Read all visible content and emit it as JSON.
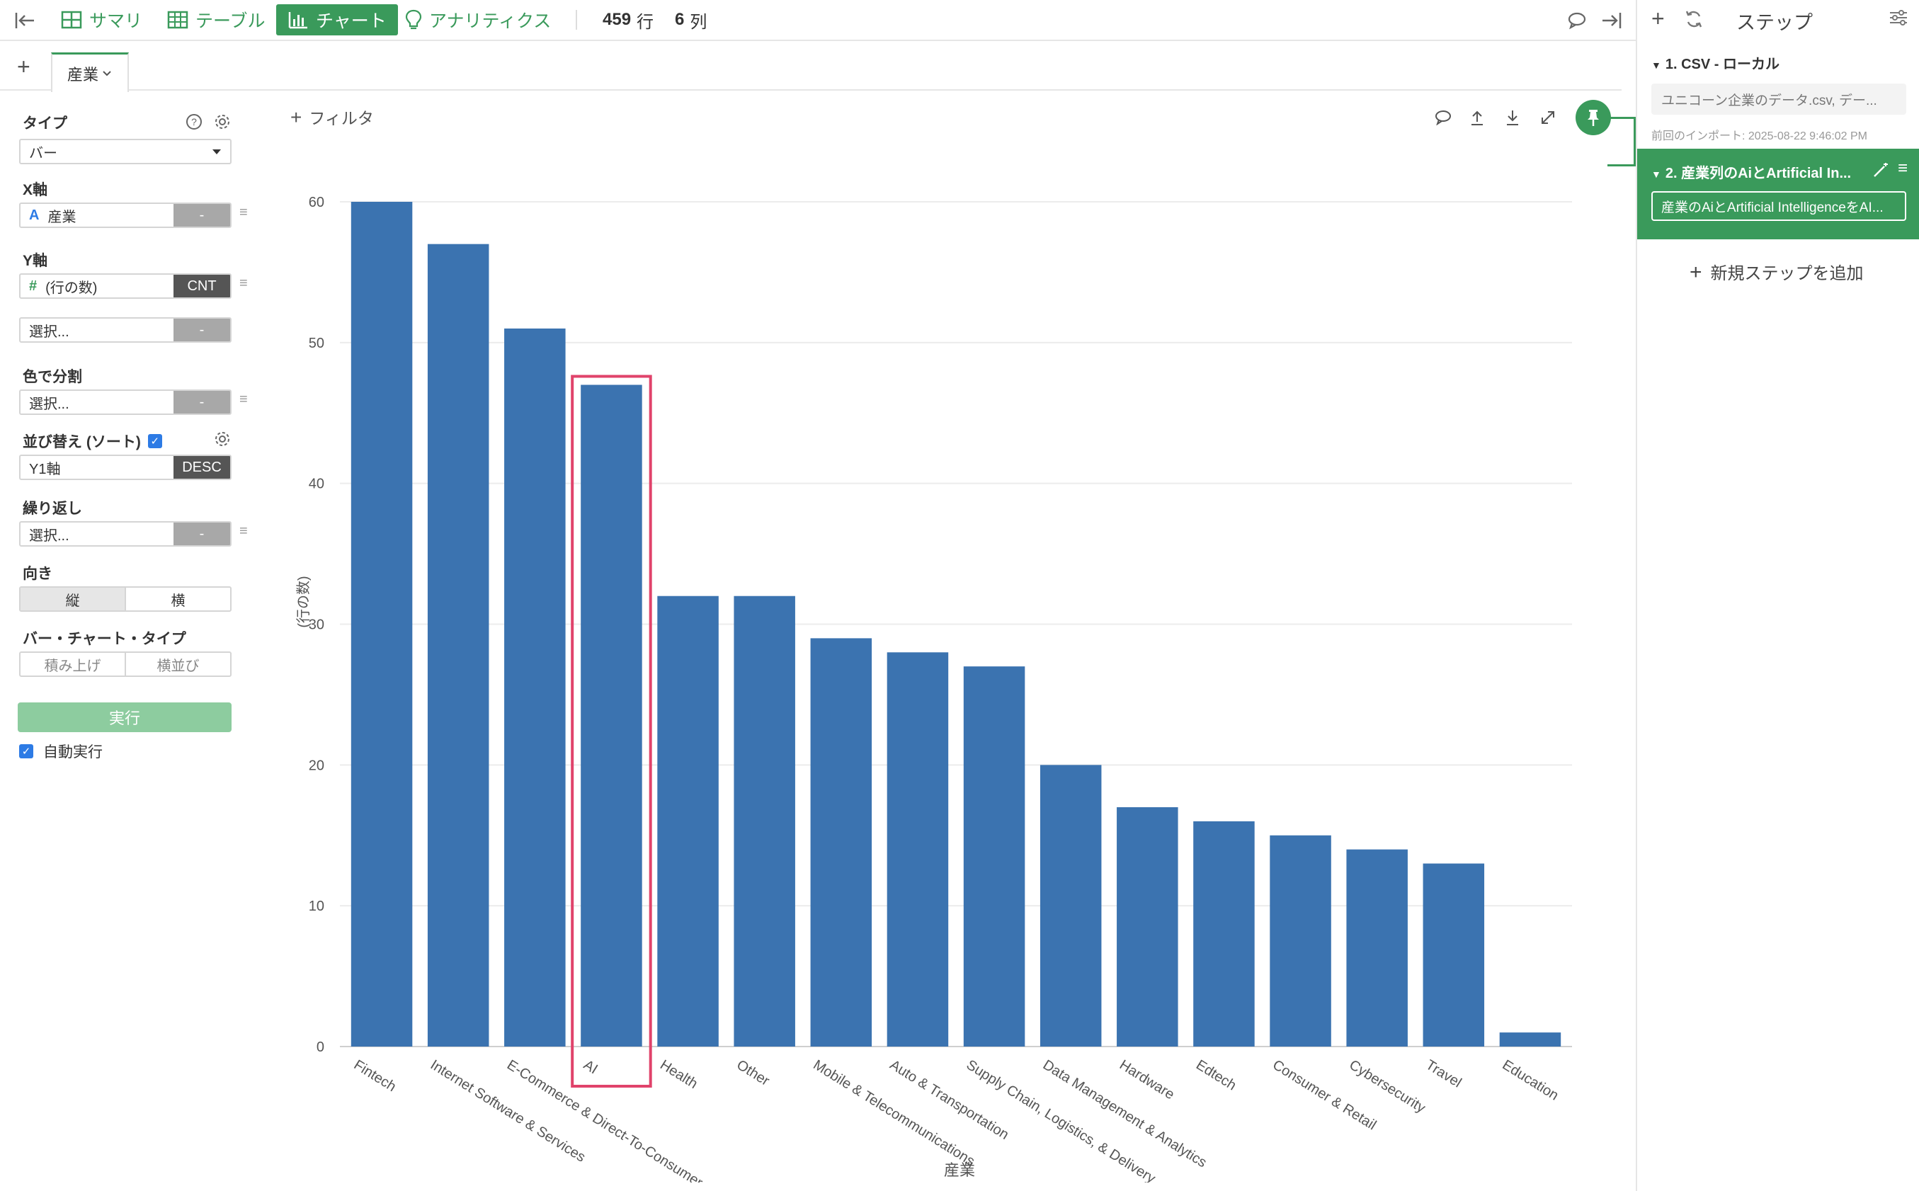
{
  "topbar": {
    "tabs": [
      {
        "label": "サマリ",
        "icon": "summary-grid-icon"
      },
      {
        "label": "テーブル",
        "icon": "table-icon"
      },
      {
        "label": "チャート",
        "icon": "bar-chart-icon",
        "active": true
      },
      {
        "label": "アナリティクス",
        "icon": "lightbulb-icon"
      }
    ],
    "rows_count": "459",
    "rows_unit": "行",
    "cols_count": "6",
    "cols_unit": "列"
  },
  "tabstrip": {
    "tab_label": "産業"
  },
  "left_panel": {
    "type_label": "タイプ",
    "type_value": "バー",
    "x_axis_label": "X軸",
    "x_axis_value": "産業",
    "x_axis_btn": "-",
    "y_axis_label": "Y軸",
    "y_axis_value": "(行の数)",
    "y_axis_agg": "CNT",
    "y2_placeholder": "選択...",
    "y2_btn": "-",
    "color_label": "色で分割",
    "color_placeholder": "選択...",
    "color_btn": "-",
    "sort_label": "並び替え (ソート)",
    "sort_value": "Y1軸",
    "sort_order": "DESC",
    "repeat_label": "繰り返し",
    "repeat_placeholder": "選択...",
    "repeat_btn": "-",
    "orientation_label": "向き",
    "orientation_options": [
      "縦",
      "横"
    ],
    "bar_type_label": "バー・チャート・タイプ",
    "bar_type_options": [
      "積み上げ",
      "横並び"
    ],
    "run_button": "実行",
    "auto_run_label": "自動実行"
  },
  "chart_toolbar": {
    "filter_label": "フィルタ"
  },
  "chart_data": {
    "type": "bar",
    "categories": [
      "Fintech",
      "Internet Software & Services",
      "E-Commerce & Direct-To-Consumer",
      "AI",
      "Health",
      "Other",
      "Mobile & Telecommunications",
      "Auto & Transportation",
      "Supply Chain, Logistics, & Delivery",
      "Data Management & Analytics",
      "Hardware",
      "Edtech",
      "Consumer & Retail",
      "Cybersecurity",
      "Travel",
      "Education"
    ],
    "values": [
      60,
      57,
      51,
      47,
      32,
      32,
      29,
      28,
      27,
      20,
      17,
      16,
      15,
      14,
      13,
      1
    ],
    "xlabel": "産業",
    "ylabel": "(行の数)",
    "ylim": [
      0,
      60
    ],
    "yticks": [
      "0",
      "10",
      "20",
      "30",
      "40",
      "50",
      "60"
    ],
    "grid": true,
    "bar_color": "#3b73b0",
    "highlight_category": "AI",
    "highlight_color": "#e0436b"
  },
  "right_panel": {
    "title": "ステップ",
    "step1_title": "1. CSV - ローカル",
    "step1_file": "ユニコーン企業のデータ.csv, デー...",
    "step1_note": "前回のインポート: 2025-08-22 9:46:02 PM",
    "step2_title": "2. 産業列のAiとArtificial In...",
    "step2_desc": "産業のAiとArtificial IntelligenceをAI...",
    "add_step": "新規ステップを追加"
  },
  "colors": {
    "accent": "#3a9a5b",
    "bar": "#3b73b0",
    "highlight": "#e0436b"
  }
}
